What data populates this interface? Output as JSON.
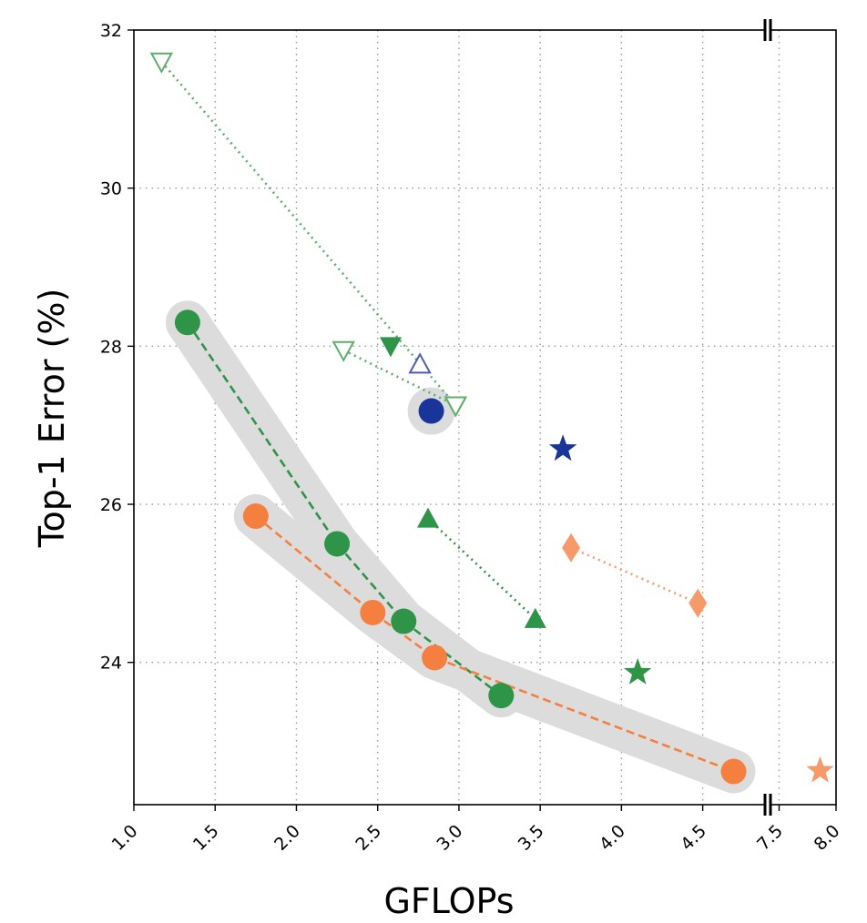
{
  "chart_data": {
    "type": "scatter",
    "title": "",
    "xlabel": "GFLOPs",
    "ylabel": "Top-1 Error (%)",
    "x_axis_break": true,
    "xticks": [
      "1.0",
      "1.5",
      "2.0",
      "2.5",
      "3.0",
      "3.5",
      "4.0",
      "4.5",
      "7.5",
      "8.0"
    ],
    "yticks": [
      "24",
      "26",
      "28",
      "30",
      "32"
    ],
    "ylim": [
      22.2,
      32
    ],
    "xlim_left_segment": [
      1.0,
      4.9
    ],
    "xlim_right_segment": [
      7.4,
      8.0
    ],
    "grid": "dotted",
    "series": [
      {
        "color": "#2e9447",
        "marker": "circle",
        "line": "dashed",
        "highlighted": true,
        "points": [
          [
            1.33,
            28.3
          ],
          [
            2.25,
            25.5
          ],
          [
            2.66,
            24.52
          ],
          [
            3.26,
            23.58
          ]
        ]
      },
      {
        "color": "#f57f3e",
        "marker": "circle",
        "line": "dashed",
        "highlighted": true,
        "points": [
          [
            1.75,
            25.85
          ],
          [
            2.47,
            24.63
          ],
          [
            2.85,
            24.06
          ],
          [
            4.69,
            22.62
          ]
        ]
      },
      {
        "color": "#1a3599",
        "marker": "circle",
        "line": "none",
        "highlighted": true,
        "points": [
          [
            2.83,
            27.18
          ]
        ]
      },
      {
        "color": "#5fae6c",
        "marker": "triangle-down-open",
        "line": "dotted",
        "points": [
          [
            1.17,
            31.6
          ],
          [
            2.98,
            27.25
          ]
        ]
      },
      {
        "color": "#5fae6c",
        "marker": "triangle-down-open",
        "line": "dotted",
        "points": [
          [
            2.29,
            27.95
          ],
          [
            2.98,
            27.25
          ]
        ]
      },
      {
        "color": "#2e9447",
        "marker": "triangle-down",
        "line": "none",
        "points": [
          [
            2.58,
            28.0
          ]
        ]
      },
      {
        "color": "#4a5bb0",
        "marker": "triangle-up-open",
        "line": "none",
        "points": [
          [
            2.76,
            27.77
          ]
        ]
      },
      {
        "color": "#2e9447",
        "marker": "triangle-up",
        "line": "dotted",
        "points": [
          [
            2.81,
            25.82
          ],
          [
            3.47,
            24.55
          ]
        ]
      },
      {
        "color": "#1a3599",
        "marker": "star",
        "line": "none",
        "points": [
          [
            3.64,
            26.7
          ]
        ]
      },
      {
        "color": "#2e9447",
        "marker": "star",
        "line": "none",
        "points": [
          [
            4.1,
            23.87
          ]
        ]
      },
      {
        "color": "#f79a6a",
        "marker": "diamond",
        "line": "dotted",
        "points": [
          [
            3.69,
            25.45
          ],
          [
            4.47,
            24.75
          ]
        ]
      },
      {
        "color": "#f79a6a",
        "marker": "star",
        "line": "none",
        "points": [
          [
            7.86,
            22.63
          ]
        ]
      }
    ]
  }
}
